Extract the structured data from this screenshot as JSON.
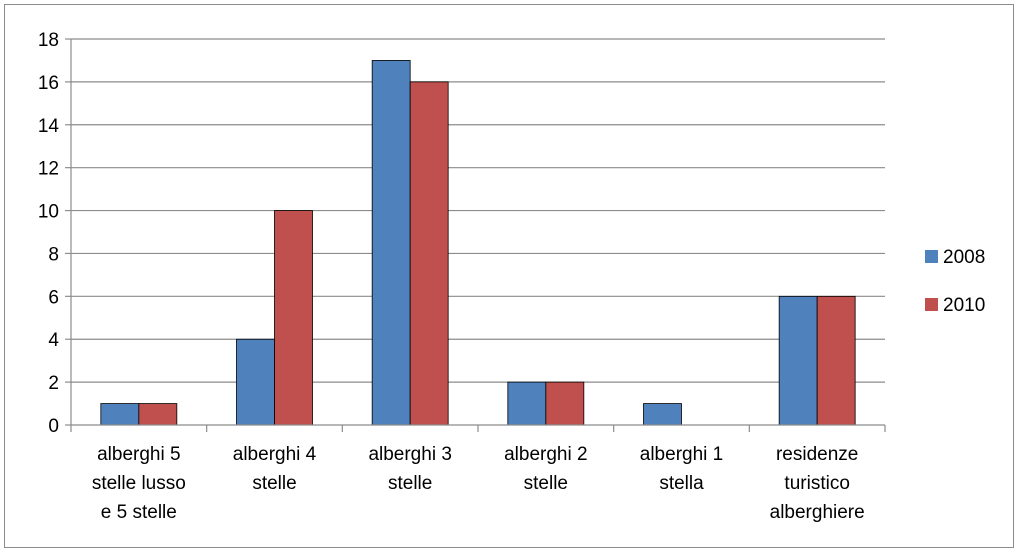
{
  "chart_data": {
    "type": "bar",
    "categories": [
      [
        "alberghi 5",
        "stelle lusso",
        "e 5 stelle"
      ],
      [
        "alberghi 4",
        "stelle"
      ],
      [
        "alberghi 3",
        "stelle"
      ],
      [
        "alberghi 2",
        "stelle"
      ],
      [
        "alberghi 1",
        "stella"
      ],
      [
        "residenze",
        "turistico",
        "alberghiere"
      ]
    ],
    "series": [
      {
        "name": "2008",
        "color": "#4f81bd",
        "values": [
          1,
          4,
          17,
          2,
          1,
          6
        ]
      },
      {
        "name": "2010",
        "color": "#c0504d",
        "values": [
          1,
          10,
          16,
          2,
          0,
          6
        ]
      }
    ],
    "ylim": [
      0,
      18
    ],
    "yticks": [
      "0",
      "2",
      "4",
      "6",
      "8",
      "10",
      "12",
      "14",
      "16",
      "18"
    ],
    "grid": true,
    "legend": "right",
    "title": "",
    "xlabel": "",
    "ylabel": ""
  }
}
